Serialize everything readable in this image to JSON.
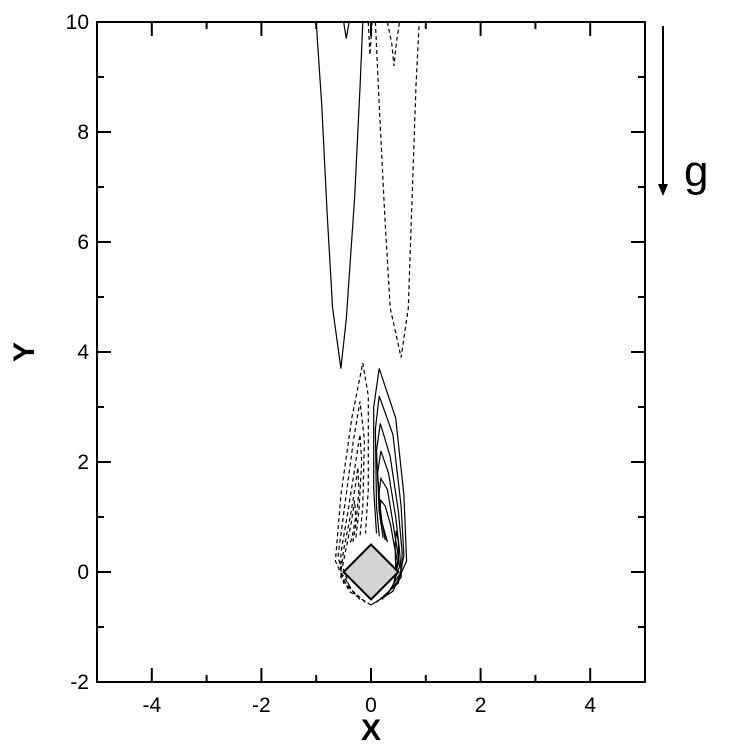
{
  "chart_data": {
    "type": "contour",
    "title": "",
    "xlabel": "X",
    "ylabel": "Y",
    "xlim": [
      -5,
      5
    ],
    "ylim": [
      -2,
      10
    ],
    "x_ticks": [
      -4,
      -2,
      0,
      2,
      4
    ],
    "x_tick_labels": [
      "-4",
      "-2",
      "0",
      "2",
      "4"
    ],
    "y_ticks": [
      -2,
      0,
      2,
      4,
      6,
      8,
      10
    ],
    "y_tick_labels": [
      "-2",
      "0",
      "2",
      "4",
      "6",
      "8",
      "10"
    ],
    "grid": false,
    "legend": "none",
    "obstacle": {
      "shape": "square rotated 45°",
      "center": [
        0,
        0
      ],
      "vertices": [
        [
          0,
          0.5
        ],
        [
          0.5,
          0
        ],
        [
          0,
          -0.5
        ],
        [
          -0.5,
          0
        ]
      ],
      "fill": "#d3d3d3"
    },
    "annotation": {
      "text": "g",
      "direction": "down"
    },
    "contour_styles": {
      "positive": "solid",
      "negative": "dashed"
    },
    "contours": [
      {
        "name": "wake-solid-1",
        "style": "solid",
        "points": [
          [
            -1.0,
            10
          ],
          [
            -0.9,
            8.5
          ],
          [
            -0.8,
            6.5
          ],
          [
            -0.7,
            4.8
          ],
          [
            -0.55,
            3.7
          ],
          [
            -0.45,
            4.6
          ],
          [
            -0.3,
            6.8
          ],
          [
            -0.2,
            8.8
          ],
          [
            -0.15,
            10
          ]
        ]
      },
      {
        "name": "wake-solid-2",
        "style": "solid",
        "points": [
          [
            -0.5,
            10
          ],
          [
            -0.45,
            9.7
          ],
          [
            -0.4,
            10
          ]
        ]
      },
      {
        "name": "wake-dashed-1",
        "style": "dashed",
        "points": [
          [
            0.08,
            10
          ],
          [
            0.15,
            8.5
          ],
          [
            0.25,
            6.5
          ],
          [
            0.35,
            4.8
          ],
          [
            0.55,
            3.9
          ],
          [
            0.68,
            4.8
          ],
          [
            0.75,
            6.8
          ],
          [
            0.82,
            8.8
          ],
          [
            0.88,
            10
          ]
        ]
      },
      {
        "name": "wake-dashed-2",
        "style": "dashed",
        "points": [
          [
            0.3,
            10
          ],
          [
            0.38,
            9.6
          ],
          [
            0.42,
            9.2
          ],
          [
            0.46,
            9.6
          ],
          [
            0.52,
            10
          ]
        ]
      },
      {
        "name": "wake-dashed-3",
        "style": "dashed",
        "points": [
          [
            -0.05,
            10
          ],
          [
            -0.02,
            9.4
          ],
          [
            0.02,
            10
          ]
        ]
      },
      {
        "name": "near-dashed-1",
        "style": "dashed",
        "points": [
          [
            0.0,
            -0.6
          ],
          [
            -0.4,
            -0.35
          ],
          [
            -0.65,
            0.2
          ],
          [
            -0.55,
            1.4
          ],
          [
            -0.35,
            2.8
          ],
          [
            -0.15,
            3.8
          ],
          [
            -0.05,
            3.2
          ],
          [
            -0.05,
            1.5
          ],
          [
            -0.1,
            0.7
          ]
        ]
      },
      {
        "name": "near-dashed-2",
        "style": "dashed",
        "points": [
          [
            -0.1,
            -0.55
          ],
          [
            -0.5,
            -0.2
          ],
          [
            -0.6,
            0.3
          ],
          [
            -0.48,
            1.2
          ],
          [
            -0.32,
            2.4
          ],
          [
            -0.2,
            3.1
          ],
          [
            -0.12,
            2.4
          ],
          [
            -0.15,
            1.2
          ],
          [
            -0.2,
            0.65
          ]
        ]
      },
      {
        "name": "near-dashed-3",
        "style": "dashed",
        "points": [
          [
            -0.2,
            -0.5
          ],
          [
            -0.55,
            -0.1
          ],
          [
            -0.55,
            0.35
          ],
          [
            -0.42,
            1.1
          ],
          [
            -0.28,
            2.0
          ],
          [
            -0.2,
            2.5
          ],
          [
            -0.17,
            2.0
          ],
          [
            -0.22,
            1.1
          ],
          [
            -0.28,
            0.6
          ]
        ]
      },
      {
        "name": "near-dashed-4",
        "style": "dashed",
        "points": [
          [
            -0.3,
            -0.4
          ],
          [
            -0.55,
            0.0
          ],
          [
            -0.5,
            0.4
          ],
          [
            -0.38,
            1.0
          ],
          [
            -0.28,
            1.6
          ],
          [
            -0.24,
            1.9
          ],
          [
            -0.22,
            1.5
          ],
          [
            -0.27,
            0.9
          ],
          [
            -0.33,
            0.55
          ]
        ]
      },
      {
        "name": "near-dashed-5",
        "style": "dashed",
        "points": [
          [
            -0.4,
            -0.25
          ],
          [
            -0.52,
            0.1
          ],
          [
            -0.45,
            0.45
          ],
          [
            -0.36,
            0.9
          ],
          [
            -0.3,
            1.3
          ],
          [
            -0.28,
            1.0
          ],
          [
            -0.35,
            0.6
          ],
          [
            -0.4,
            0.5
          ]
        ]
      },
      {
        "name": "near-solid-1",
        "style": "solid",
        "points": [
          [
            0.0,
            -0.6
          ],
          [
            0.4,
            -0.35
          ],
          [
            0.65,
            0.2
          ],
          [
            0.6,
            1.4
          ],
          [
            0.45,
            2.8
          ],
          [
            0.15,
            3.7
          ],
          [
            0.05,
            3.0
          ],
          [
            0.05,
            1.5
          ],
          [
            0.1,
            0.7
          ]
        ]
      },
      {
        "name": "near-solid-2",
        "style": "solid",
        "points": [
          [
            0.1,
            -0.55
          ],
          [
            0.5,
            -0.2
          ],
          [
            0.6,
            0.3
          ],
          [
            0.55,
            1.2
          ],
          [
            0.4,
            2.5
          ],
          [
            0.15,
            3.2
          ],
          [
            0.08,
            2.6
          ],
          [
            0.1,
            1.2
          ],
          [
            0.15,
            0.65
          ]
        ]
      },
      {
        "name": "near-solid-3",
        "style": "solid",
        "points": [
          [
            0.2,
            -0.5
          ],
          [
            0.55,
            -0.1
          ],
          [
            0.57,
            0.35
          ],
          [
            0.5,
            1.1
          ],
          [
            0.35,
            2.1
          ],
          [
            0.17,
            2.7
          ],
          [
            0.1,
            2.2
          ],
          [
            0.15,
            1.1
          ],
          [
            0.22,
            0.62
          ]
        ]
      },
      {
        "name": "near-solid-4",
        "style": "solid",
        "points": [
          [
            0.3,
            -0.4
          ],
          [
            0.55,
            0.0
          ],
          [
            0.52,
            0.4
          ],
          [
            0.45,
            1.0
          ],
          [
            0.32,
            1.8
          ],
          [
            0.18,
            2.2
          ],
          [
            0.12,
            1.8
          ],
          [
            0.18,
            1.0
          ],
          [
            0.26,
            0.58
          ]
        ]
      },
      {
        "name": "near-solid-5",
        "style": "solid",
        "points": [
          [
            0.38,
            -0.3
          ],
          [
            0.52,
            0.1
          ],
          [
            0.47,
            0.45
          ],
          [
            0.4,
            0.9
          ],
          [
            0.3,
            1.5
          ],
          [
            0.18,
            1.7
          ],
          [
            0.14,
            1.4
          ],
          [
            0.2,
            0.9
          ],
          [
            0.3,
            0.55
          ]
        ]
      },
      {
        "name": "near-solid-6",
        "style": "solid",
        "points": [
          [
            0.42,
            -0.2
          ],
          [
            0.48,
            0.2
          ],
          [
            0.42,
            0.5
          ],
          [
            0.36,
            0.85
          ],
          [
            0.26,
            1.2
          ],
          [
            0.18,
            1.3
          ],
          [
            0.16,
            1.1
          ],
          [
            0.22,
            0.8
          ],
          [
            0.3,
            0.55
          ]
        ]
      },
      {
        "name": "near-solid-7",
        "style": "solid",
        "points": [
          [
            0.45,
            0.05
          ],
          [
            0.44,
            0.5
          ],
          [
            0.46,
            0.75
          ],
          [
            0.5,
            0.55
          ],
          [
            0.5,
            0.2
          ],
          [
            0.47,
            0.05
          ]
        ]
      }
    ]
  }
}
